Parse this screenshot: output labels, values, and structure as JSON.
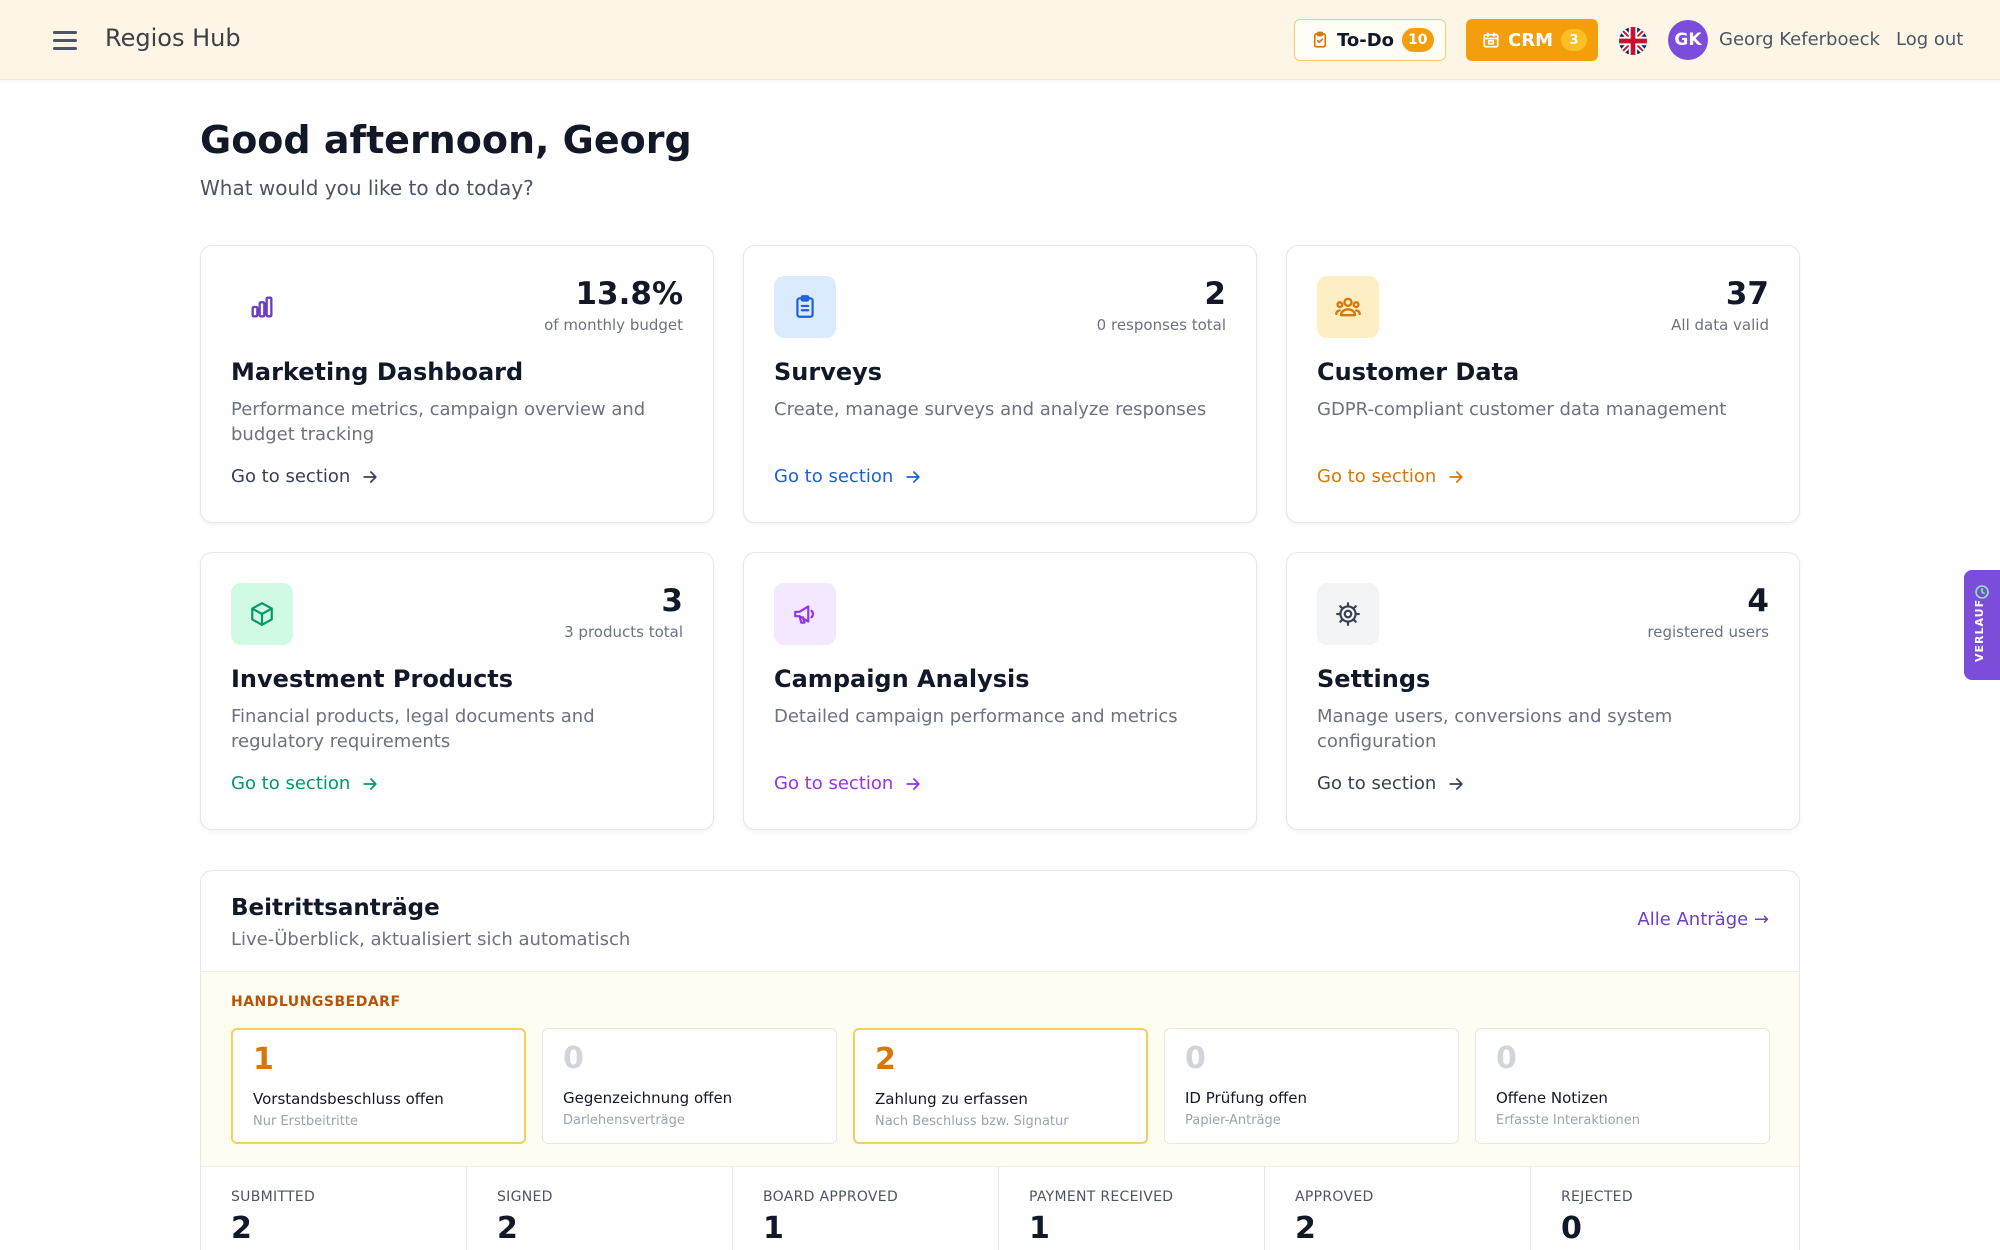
{
  "header": {
    "brand": "Regios Hub",
    "todo_label": "To-Do",
    "todo_count": "10",
    "crm_label": "CRM",
    "crm_count": "3",
    "avatar_initials": "GK",
    "user_name": "Georg Keferboeck",
    "logout_label": "Log out",
    "colors": {
      "header_bg": "#fdf6e6",
      "accent": "#f59e0b",
      "avatar": "#7c4ddb"
    }
  },
  "greeting": {
    "title": "Good afternoon, Georg",
    "subtitle": "What would you like to do today?"
  },
  "cards": [
    {
      "title": "Marketing Dashboard",
      "desc": "Performance metrics, campaign overview and budget tracking",
      "stat": "13.8%",
      "stat_sub": "of monthly budget",
      "link": "Go to section",
      "icon": "bar-chart-icon",
      "color": "#374151"
    },
    {
      "title": "Surveys",
      "desc": "Create, manage surveys and analyze responses",
      "stat": "2",
      "stat_sub": "0 responses total",
      "link": "Go to section",
      "icon": "clipboard-icon",
      "color": "#1d5fd6"
    },
    {
      "title": "Customer Data",
      "desc": "GDPR-compliant customer data management",
      "stat": "37",
      "stat_sub": "All data valid",
      "link": "Go to section",
      "icon": "users-icon",
      "color": "#d97706"
    },
    {
      "title": "Investment Products",
      "desc": "Financial products, legal documents and regulatory requirements",
      "stat": "3",
      "stat_sub": "3 products total",
      "link": "Go to section",
      "icon": "cube-icon",
      "color": "#059669"
    },
    {
      "title": "Campaign Analysis",
      "desc": "Detailed campaign performance and metrics",
      "stat": "",
      "stat_sub": "",
      "link": "Go to section",
      "icon": "megaphone-icon",
      "color": "#9333ea"
    },
    {
      "title": "Settings",
      "desc": "Manage users, conversions and system configuration",
      "stat": "4",
      "stat_sub": "registered users",
      "link": "Go to section",
      "icon": "gear-icon",
      "color": "#374151"
    }
  ],
  "applications": {
    "title": "Beitrittsanträge",
    "subtitle": "Live-Überblick, aktualisiert sich automatisch",
    "link": "Alle Anträge →",
    "action_label": "HANDLUNGSBEDARF",
    "actions": [
      {
        "count": "1",
        "label": "Vorstandsbeschluss offen",
        "sub": "Nur Erstbeitritte"
      },
      {
        "count": "0",
        "label": "Gegenzeichnung offen",
        "sub": "Darlehensverträge"
      },
      {
        "count": "2",
        "label": "Zahlung zu erfassen",
        "sub": "Nach Beschluss bzw. Signatur"
      },
      {
        "count": "0",
        "label": "ID Prüfung offen",
        "sub": "Papier-Anträge"
      },
      {
        "count": "0",
        "label": "Offene Notizen",
        "sub": "Erfasste Interaktionen"
      }
    ],
    "stats": [
      {
        "label": "SUBMITTED",
        "value": "2"
      },
      {
        "label": "SIGNED",
        "value": "2"
      },
      {
        "label": "BOARD APPROVED",
        "value": "1"
      },
      {
        "label": "PAYMENT RECEIVED",
        "value": "1"
      },
      {
        "label": "APPROVED",
        "value": "2"
      },
      {
        "label": "REJECTED",
        "value": "0"
      }
    ]
  },
  "sidetab": {
    "label": "VERLAUF",
    "icon": "clock-icon"
  }
}
